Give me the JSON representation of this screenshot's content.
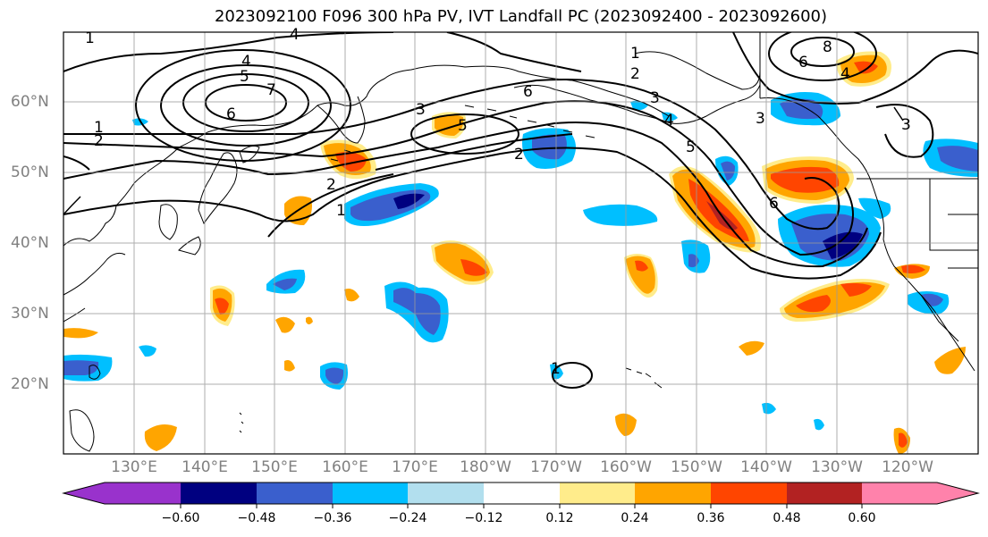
{
  "title": "2023092100 F096 300 hPa PV, IVT Landfall PC (2023092400 - 2023092600)",
  "lat_labels": [
    "60°N",
    "50°N",
    "40°N",
    "30°N",
    "20°N"
  ],
  "lon_labels": [
    "130°E",
    "140°E",
    "150°E",
    "160°E",
    "170°E",
    "180°W",
    "170°W",
    "160°W",
    "150°W",
    "140°W",
    "130°W",
    "120°W"
  ],
  "colorbar": {
    "labels": [
      "−0.60",
      "−0.48",
      "−0.36",
      "−0.24",
      "−0.12",
      "0.12",
      "0.24",
      "0.36",
      "0.48",
      "0.60"
    ],
    "colors": [
      "#9932CC",
      "#000080",
      "#3A5FCD",
      "#00BFFF",
      "#B2DFEE",
      "#FFFFFF",
      "#FFEC8B",
      "#FFA500",
      "#FF4500",
      "#B22222",
      "#FF82AB"
    ]
  },
  "contour_labels": [
    "1",
    "2",
    "3",
    "4",
    "5",
    "6",
    "7",
    "8"
  ],
  "map": {
    "extent_lon": [
      "120°E",
      "110°W"
    ],
    "extent_lat": [
      "10°N",
      "70°N"
    ],
    "fields": [
      "300 hPa PV",
      "IVT Landfall PC"
    ]
  }
}
